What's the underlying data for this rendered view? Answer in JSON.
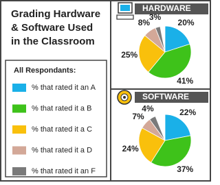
{
  "title": [
    "Grading Hardware",
    "& Software Used",
    "in the Classroom"
  ],
  "legend": {
    "title": "All Respondants:",
    "categories": [
      "% that rated it an A",
      "% that rated it a B",
      "% that rated it a C",
      "% that rated it a D",
      "% that rated it an F"
    ],
    "colors": [
      "#1ab0e8",
      "#3ec21a",
      "#f9c00c",
      "#d3a898",
      "#7a7a7a"
    ]
  },
  "chart_data": [
    {
      "type": "pie",
      "title": "HARDWARE",
      "values": [
        20,
        41,
        25,
        8,
        3
      ],
      "value_labels": [
        "20%",
        "41%",
        "25%",
        "8%",
        "3%"
      ]
    },
    {
      "type": "pie",
      "title": "SOFTWARE",
      "values": [
        22,
        37,
        24,
        7,
        4
      ],
      "value_labels": [
        "22%",
        "37%",
        "24%",
        "7%",
        "4%"
      ]
    }
  ]
}
